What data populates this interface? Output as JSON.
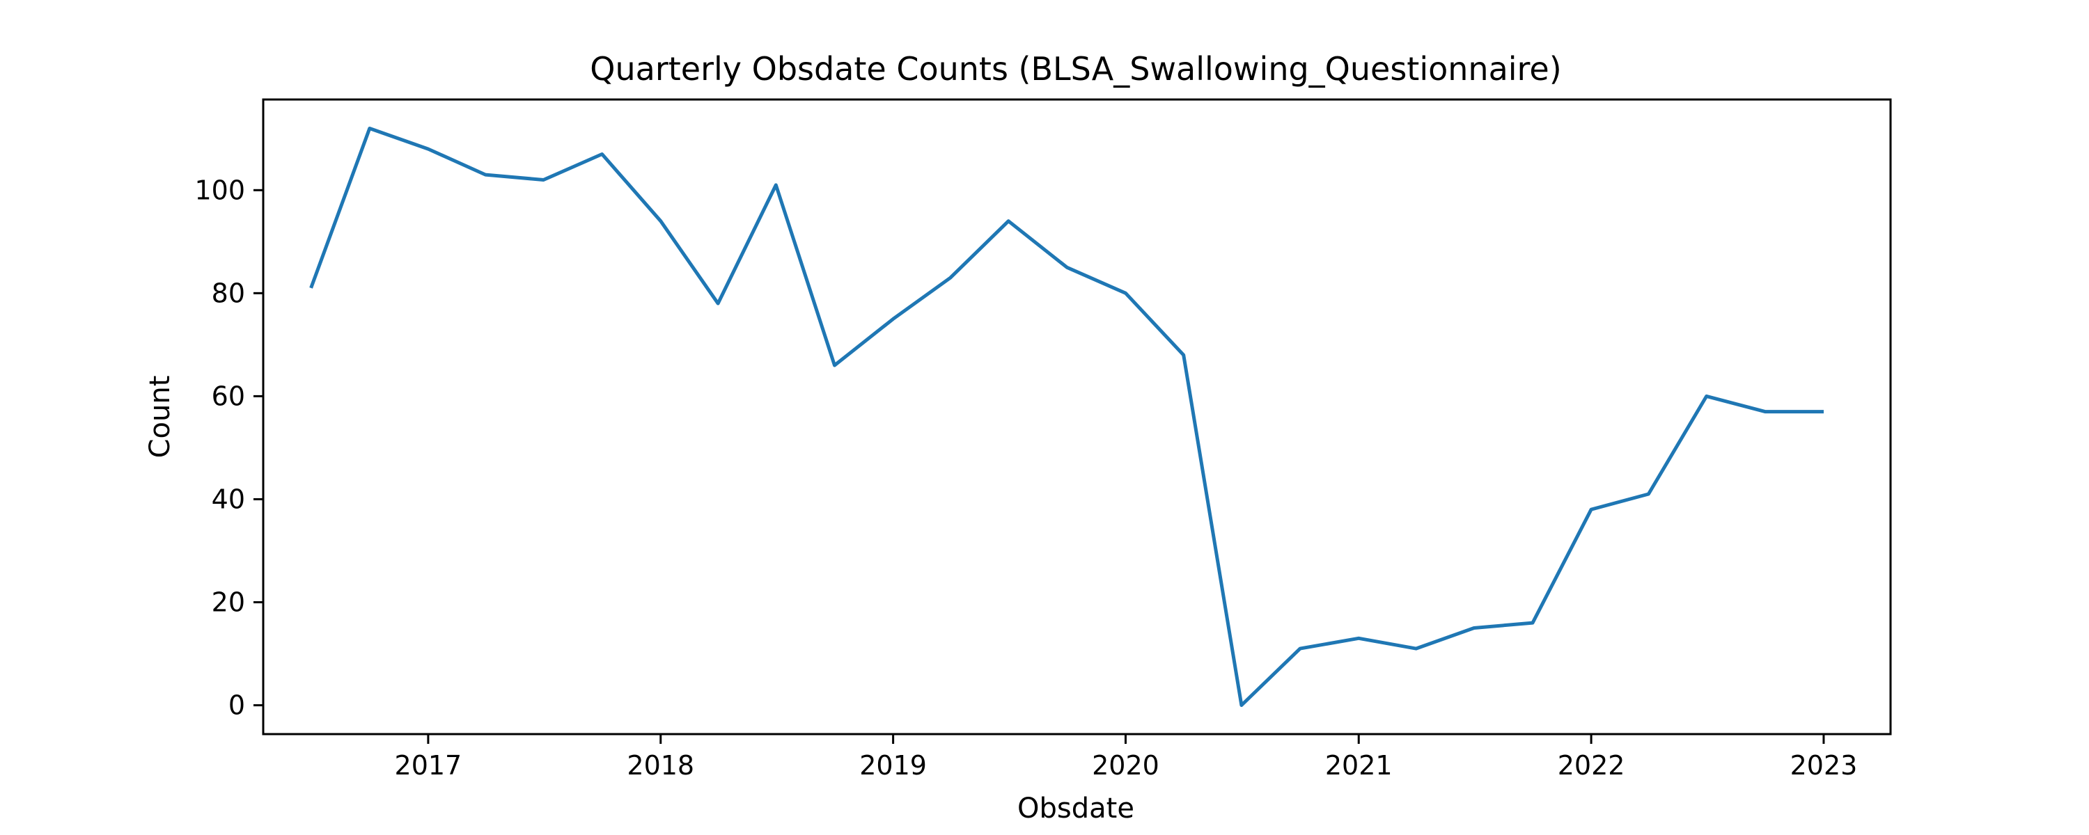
{
  "chart_data": {
    "type": "line",
    "title": "Quarterly Obsdate Counts (BLSA_Swallowing_Questionnaire)",
    "xlabel": "Obsdate",
    "ylabel": "Count",
    "x": [
      "2016-07-01",
      "2016-10-01",
      "2017-01-01",
      "2017-04-01",
      "2017-07-01",
      "2017-10-01",
      "2018-01-01",
      "2018-04-01",
      "2018-07-01",
      "2018-10-01",
      "2019-01-01",
      "2019-04-01",
      "2019-07-01",
      "2019-10-01",
      "2020-01-01",
      "2020-04-01",
      "2020-07-01",
      "2020-10-01",
      "2021-01-01",
      "2021-04-01",
      "2021-07-01",
      "2021-10-01",
      "2022-01-01",
      "2022-04-01",
      "2022-07-01",
      "2022-10-01",
      "2023-01-01"
    ],
    "series": [
      {
        "values": [
          81,
          112,
          108,
          103,
          102,
          107,
          94,
          78,
          101,
          66,
          75,
          83,
          94,
          85,
          80,
          68,
          0,
          11,
          13,
          11,
          15,
          16,
          38,
          41,
          60,
          57,
          57
        ],
        "color": "#1f77b4"
      }
    ],
    "xlim": [
      "2016-04-17",
      "2023-04-16"
    ],
    "ylim": [
      -5.6,
      117.6
    ],
    "xticks": [
      {
        "date": "2017-01-01",
        "label": "2017"
      },
      {
        "date": "2018-01-01",
        "label": "2018"
      },
      {
        "date": "2019-01-01",
        "label": "2019"
      },
      {
        "date": "2020-01-01",
        "label": "2020"
      },
      {
        "date": "2021-01-01",
        "label": "2021"
      },
      {
        "date": "2022-01-01",
        "label": "2022"
      },
      {
        "date": "2023-01-01",
        "label": "2023"
      }
    ],
    "yticks": [
      {
        "value": 0,
        "label": "0"
      },
      {
        "value": 20,
        "label": "20"
      },
      {
        "value": 40,
        "label": "40"
      },
      {
        "value": 60,
        "label": "60"
      },
      {
        "value": 80,
        "label": "80"
      },
      {
        "value": 100,
        "label": "100"
      }
    ],
    "grid": false,
    "legend": "none"
  }
}
